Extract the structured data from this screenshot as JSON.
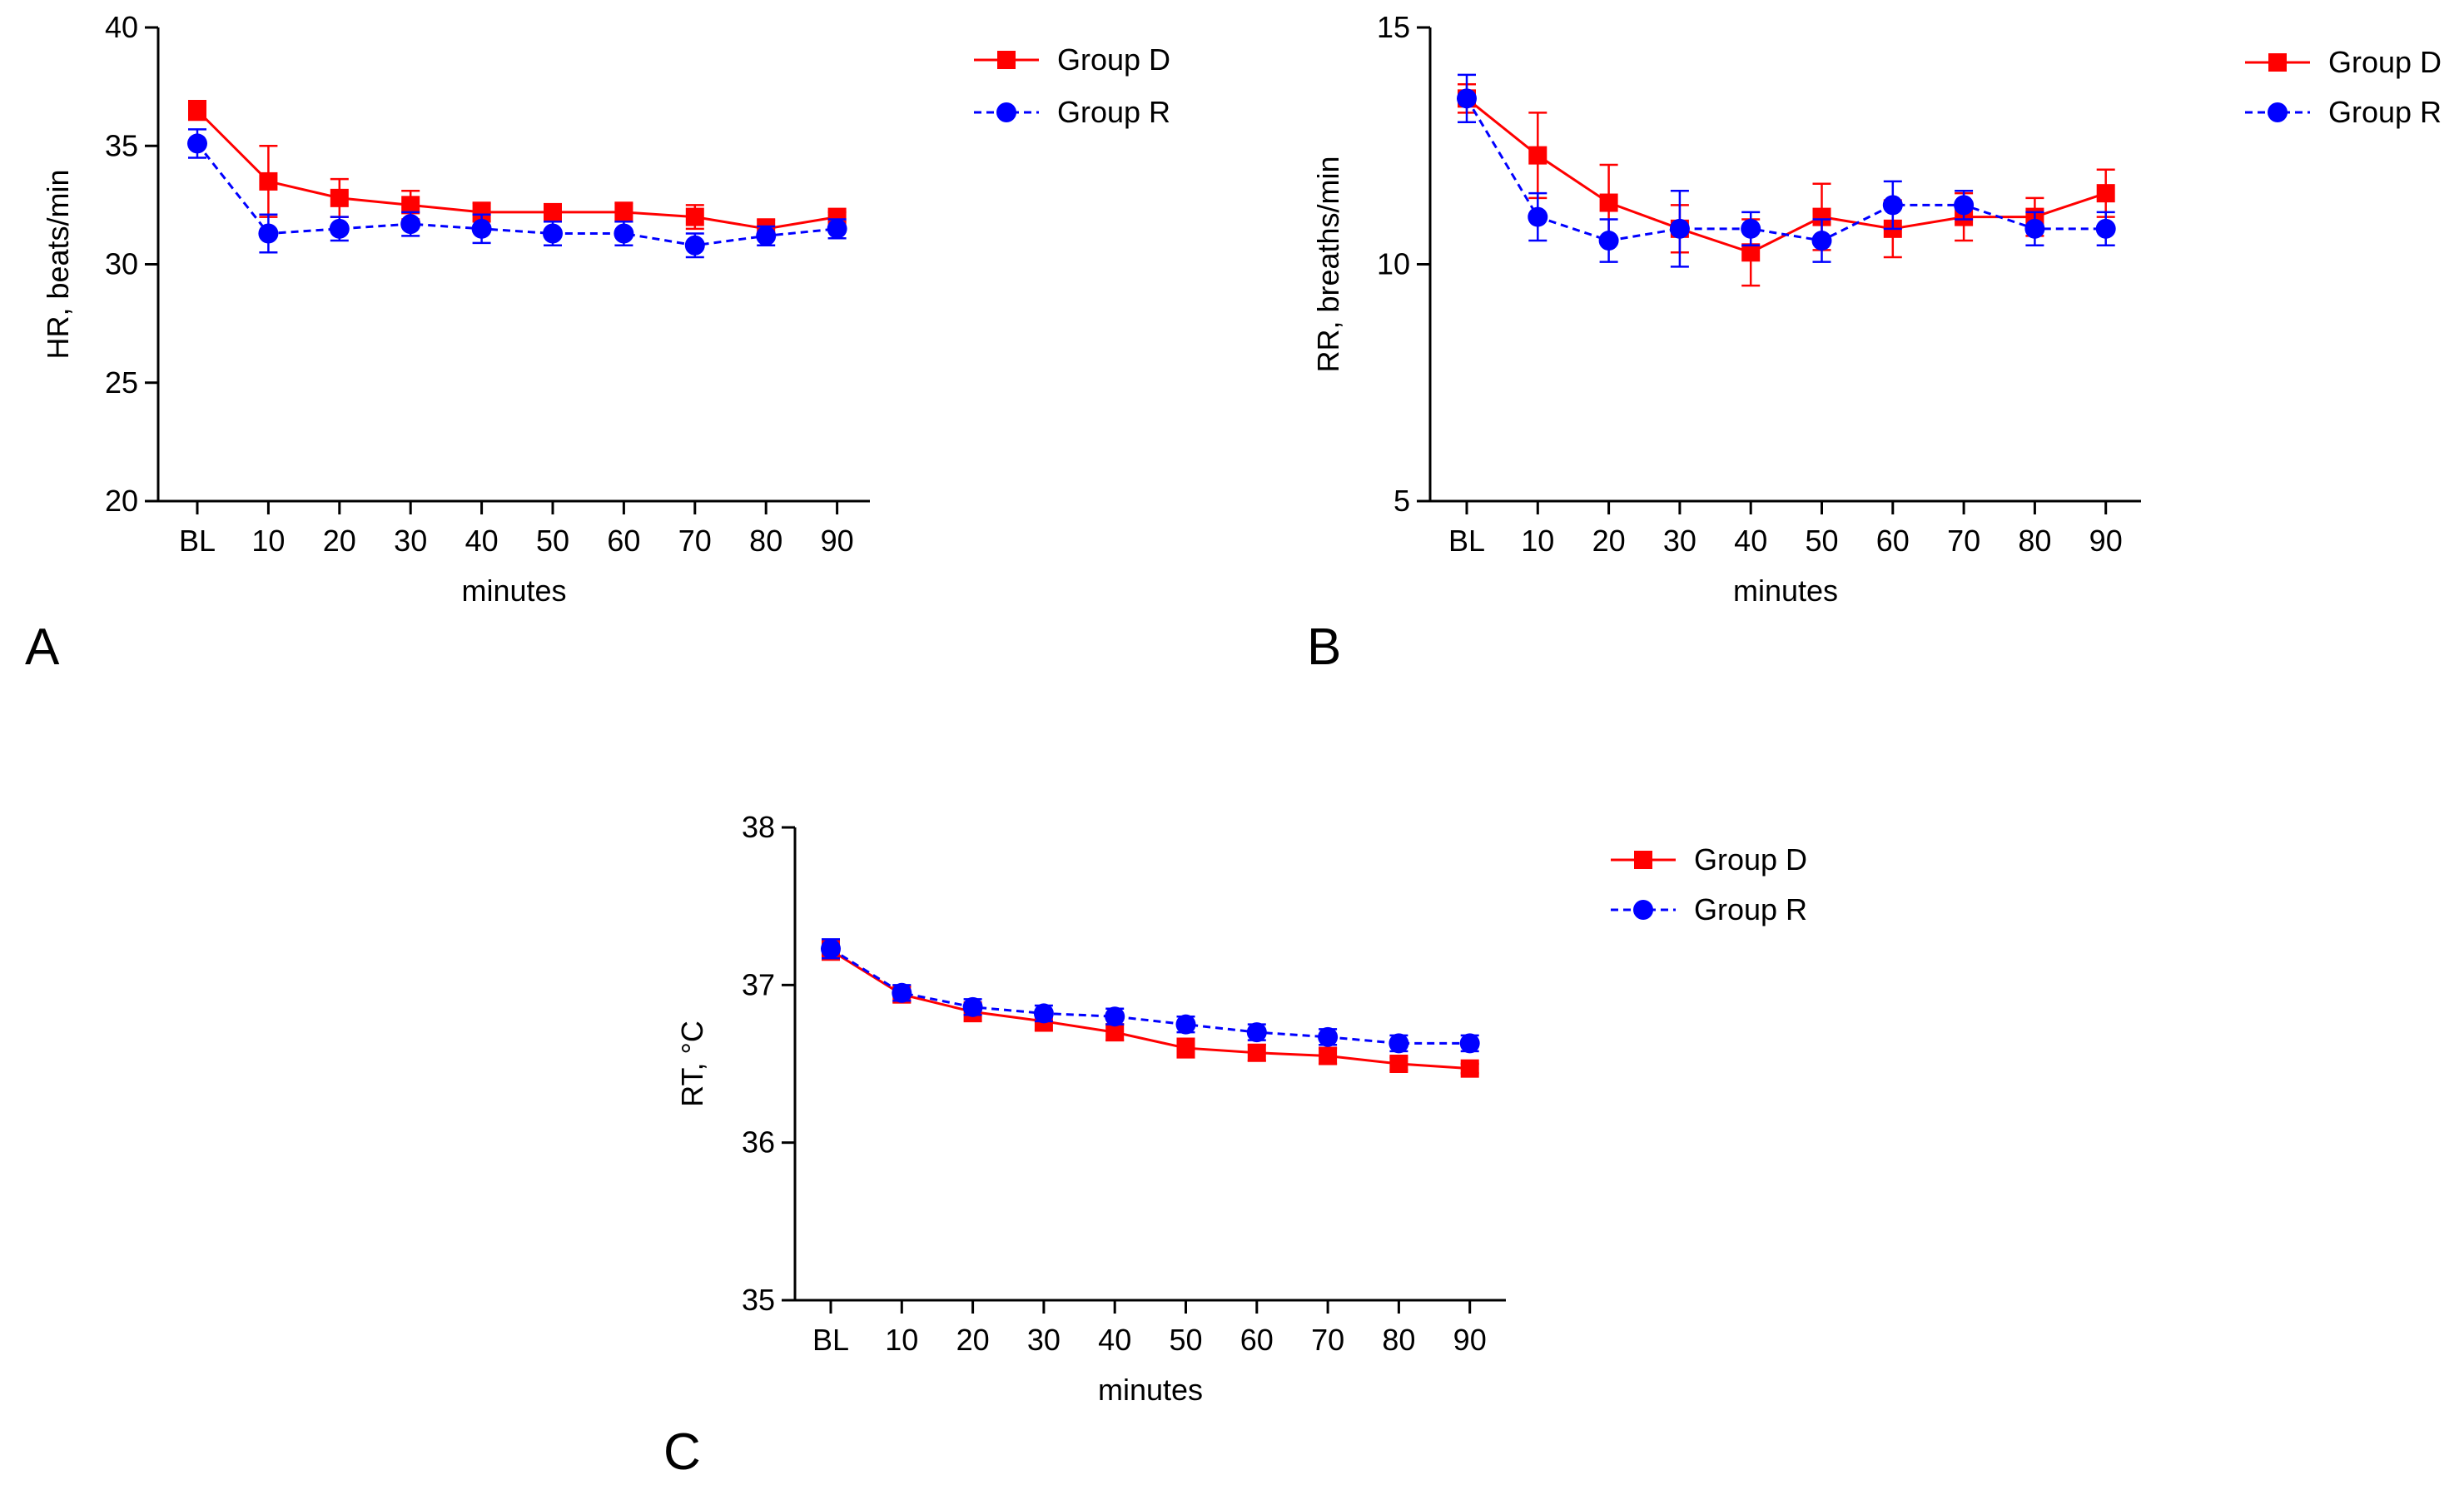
{
  "figure": {
    "panel_letters": [
      "A",
      "B",
      "C"
    ]
  },
  "colors": {
    "group_d": "#ff0000",
    "group_r": "#0000ff",
    "axis": "#000000"
  },
  "chart_data": [
    {
      "type": "line",
      "panel": "A",
      "xlabel": "minutes",
      "ylabel": "HR, beats/min",
      "categories": [
        "BL",
        "10",
        "20",
        "30",
        "40",
        "50",
        "60",
        "70",
        "80",
        "90"
      ],
      "ylim": [
        20,
        40
      ],
      "yticks": [
        "20",
        "25",
        "30",
        "35",
        "40"
      ],
      "legend": {
        "position": "top-right",
        "entries": [
          "Group D",
          "Group R"
        ]
      },
      "series": [
        {
          "name": "Group D",
          "marker": "square",
          "line": "solid",
          "values": [
            36.5,
            33.5,
            32.8,
            32.5,
            32.2,
            32.2,
            32.2,
            32.0,
            31.5,
            32.0
          ],
          "errors": [
            0.4,
            1.5,
            0.8,
            0.6,
            0.4,
            0.2,
            0.4,
            0.5,
            0.4,
            0.2
          ]
        },
        {
          "name": "Group R",
          "marker": "circle",
          "line": "dashed",
          "values": [
            35.1,
            31.3,
            31.5,
            31.7,
            31.5,
            31.3,
            31.3,
            30.8,
            31.2,
            31.5
          ],
          "errors": [
            0.6,
            0.8,
            0.5,
            0.5,
            0.6,
            0.5,
            0.5,
            0.5,
            0.4,
            0.4
          ]
        }
      ]
    },
    {
      "type": "line",
      "panel": "B",
      "xlabel": "minutes",
      "ylabel": "RR, breaths/min",
      "categories": [
        "BL",
        "10",
        "20",
        "30",
        "40",
        "50",
        "60",
        "70",
        "80",
        "90"
      ],
      "ylim": [
        5,
        15
      ],
      "yticks": [
        "5",
        "10",
        "15"
      ],
      "legend": {
        "position": "top-right",
        "entries": [
          "Group D",
          "Group R"
        ]
      },
      "series": [
        {
          "name": "Group D",
          "marker": "square",
          "line": "solid",
          "values": [
            13.5,
            12.3,
            11.3,
            10.75,
            10.25,
            11.0,
            10.75,
            11.0,
            11.0,
            11.5
          ],
          "errors": [
            0.3,
            0.9,
            0.8,
            0.5,
            0.7,
            0.7,
            0.6,
            0.5,
            0.4,
            0.5
          ]
        },
        {
          "name": "Group R",
          "marker": "circle",
          "line": "dashed",
          "values": [
            13.5,
            11.0,
            10.5,
            10.75,
            10.75,
            10.5,
            11.25,
            11.25,
            10.75,
            10.75
          ],
          "errors": [
            0.5,
            0.5,
            0.45,
            0.8,
            0.35,
            0.45,
            0.5,
            0.3,
            0.35,
            0.35
          ]
        }
      ]
    },
    {
      "type": "line",
      "panel": "C",
      "xlabel": "minutes",
      "ylabel": "RT, °C",
      "categories": [
        "BL",
        "10",
        "20",
        "30",
        "40",
        "50",
        "60",
        "70",
        "80",
        "90"
      ],
      "ylim": [
        35,
        38
      ],
      "yticks": [
        "35",
        "36",
        "37",
        "38"
      ],
      "legend": {
        "position": "top-right",
        "entries": [
          "Group D",
          "Group R"
        ]
      },
      "series": [
        {
          "name": "Group D",
          "marker": "square",
          "line": "solid",
          "values": [
            37.22,
            36.94,
            36.83,
            36.77,
            36.7,
            36.6,
            36.57,
            36.55,
            36.5,
            36.47
          ],
          "errors": [
            0.06,
            0.05,
            0.06,
            0.06,
            0.05,
            0.06,
            0.05,
            0.05,
            0.04,
            0.03
          ]
        },
        {
          "name": "Group R",
          "marker": "circle",
          "line": "dashed",
          "values": [
            37.23,
            36.95,
            36.86,
            36.82,
            36.8,
            36.75,
            36.7,
            36.67,
            36.63,
            36.63
          ],
          "errors": [
            0.06,
            0.05,
            0.05,
            0.05,
            0.05,
            0.05,
            0.05,
            0.05,
            0.05,
            0.05
          ]
        }
      ]
    }
  ]
}
